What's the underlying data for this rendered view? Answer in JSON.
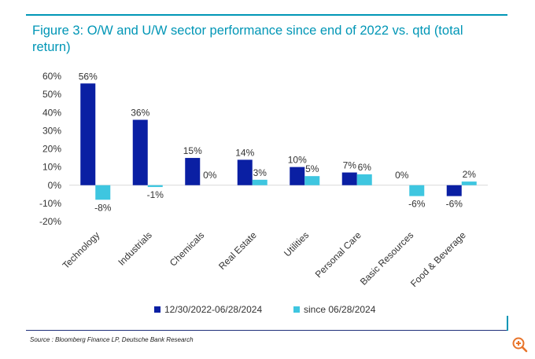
{
  "title": "Figure 3: O/W and U/W sector performance since end of 2022 vs. qtd (total return)",
  "source": "Source : Bloomberg Finance LP, Deutsche Bank Research",
  "zoom_icon": "zoom-in-icon",
  "colors": {
    "accent": "#0096b6",
    "series1": "#0a1fa3",
    "series2": "#3ec6e0",
    "rule": "#1f2f7a"
  },
  "chart_data": {
    "type": "bar",
    "categories": [
      "Technology",
      "Industrials",
      "Chemicals",
      "Real Estate",
      "Utilities",
      "Personal Care",
      "Basic Resources",
      "Food & Beverage"
    ],
    "series": [
      {
        "name": "12/30/2022-06/28/2024",
        "values": [
          56,
          36,
          15,
          14,
          10,
          7,
          0,
          -6
        ],
        "labels": [
          "56%",
          "36%",
          "15%",
          "14%",
          "10%",
          "7%",
          "0%",
          "-6%"
        ]
      },
      {
        "name": "since 06/28/2024",
        "values": [
          -8,
          -1,
          0,
          3,
          5,
          6,
          -6,
          2
        ],
        "labels": [
          "-8%",
          "-1%",
          "0%",
          "3%",
          "5%",
          "6%",
          "-6%",
          "2%"
        ]
      }
    ],
    "yticks": [
      60,
      50,
      40,
      30,
      20,
      10,
      0,
      -10,
      -20
    ],
    "ytick_labels": [
      "60%",
      "50%",
      "40%",
      "30%",
      "20%",
      "10%",
      "0%",
      "-10%",
      "-20%"
    ],
    "ylim": [
      -20,
      60
    ],
    "legend_position": "bottom-center"
  }
}
